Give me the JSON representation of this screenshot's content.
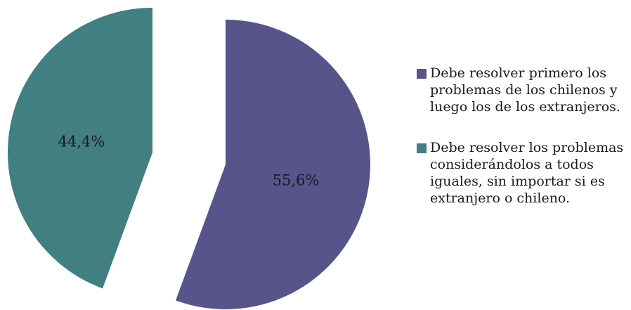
{
  "chart_data": {
    "type": "pie",
    "title": "",
    "categories": [
      "Debe resolver primero los problemas de los chilenos y luego los de los extranjeros.",
      "Debe resolver los problemas considerándolos a todos iguales, sin importar si es extranjero o chileno."
    ],
    "values": [
      55.6,
      44.4
    ],
    "value_labels": [
      "55,6%",
      "44,4%"
    ],
    "colors": [
      "#57548b",
      "#417f80"
    ],
    "exploded": true,
    "legend_position": "right"
  }
}
